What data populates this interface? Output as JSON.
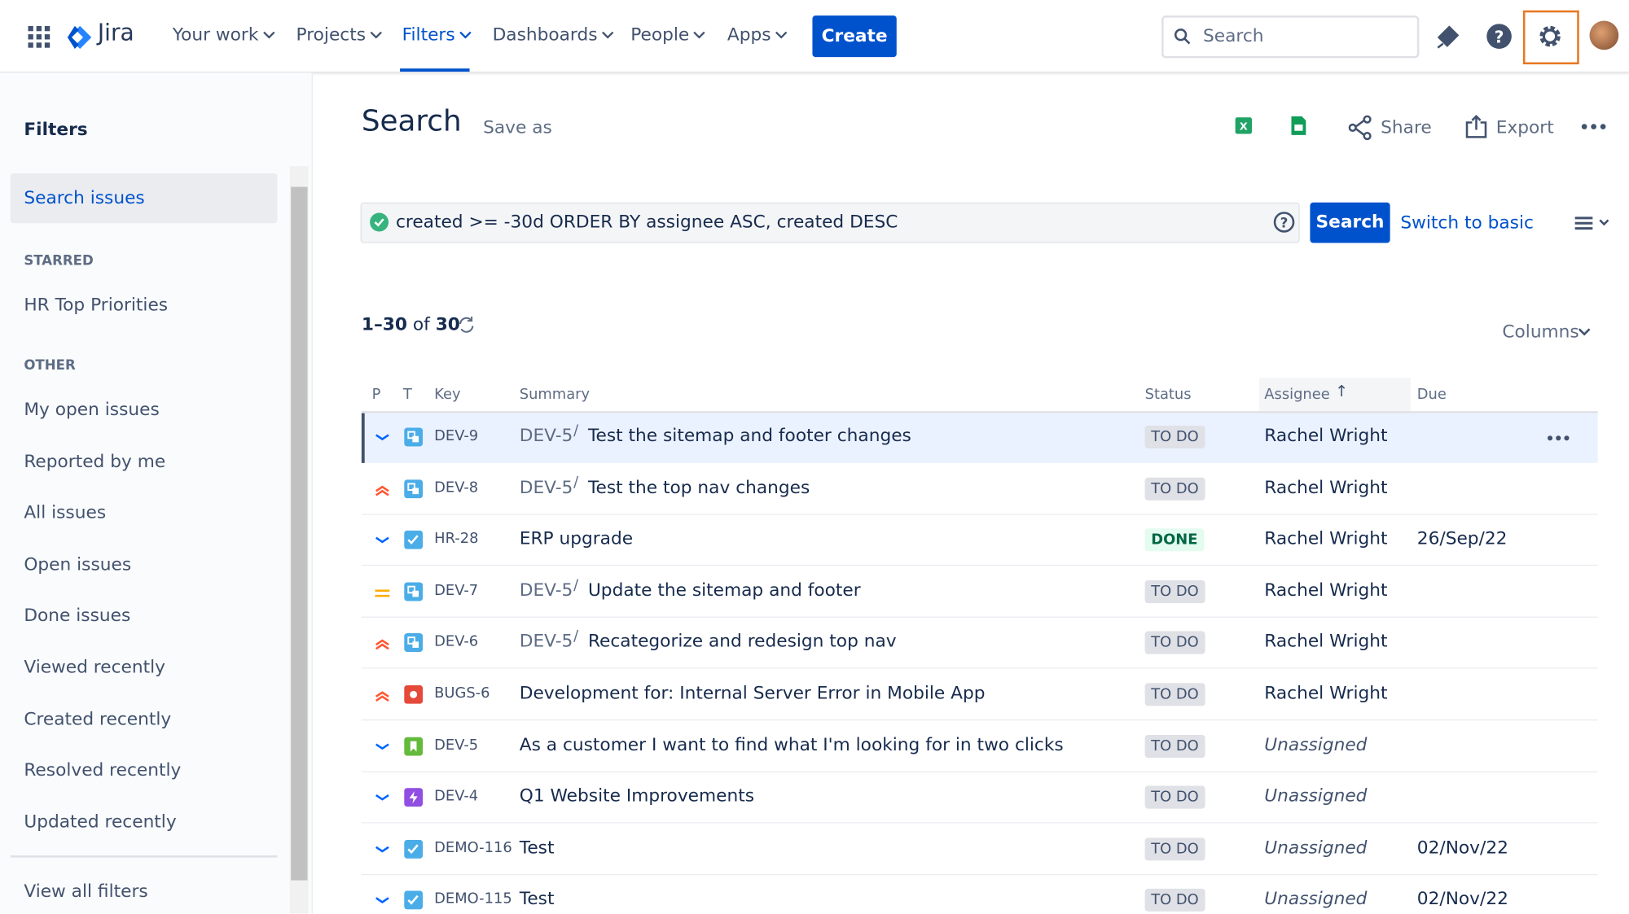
{
  "nav": {
    "product": "Jira",
    "items": [
      "Your work",
      "Projects",
      "Filters",
      "Dashboards",
      "People",
      "Apps"
    ],
    "create": "Create",
    "search_placeholder": "Search"
  },
  "sidebar": {
    "title": "Filters",
    "selected": "Search issues",
    "starred_heading": "STARRED",
    "starred": [
      "HR Top Priorities"
    ],
    "other_heading": "OTHER",
    "other": [
      "My open issues",
      "Reported by me",
      "All issues",
      "Open issues",
      "Done issues",
      "Viewed recently",
      "Created recently",
      "Resolved recently",
      "Updated recently"
    ],
    "footer": "View all filters"
  },
  "header": {
    "title": "Search",
    "save_as": "Save as",
    "share": "Share",
    "export": "Export"
  },
  "query": {
    "jql": "created >= -30d ORDER BY assignee ASC, created DESC",
    "search": "Search",
    "switch": "Switch to basic"
  },
  "results": {
    "range": "1–30",
    "of": "of",
    "total": "30",
    "columns": "Columns"
  },
  "table": {
    "headers": [
      "P",
      "T",
      "Key",
      "Summary",
      "Status",
      "Assignee",
      "Due"
    ],
    "rows": [
      {
        "key": "DEV-9",
        "parent": "DEV-5",
        "summary": "Test the sitemap and footer changes",
        "status": "TO DO",
        "assignee": "Rachel Wright",
        "due": ""
      },
      {
        "key": "DEV-8",
        "parent": "DEV-5",
        "summary": "Test the top nav changes",
        "status": "TO DO",
        "assignee": "Rachel Wright",
        "due": ""
      },
      {
        "key": "HR-28",
        "parent": "",
        "summary": "ERP upgrade",
        "status": "DONE",
        "assignee": "Rachel Wright",
        "due": "26/Sep/22"
      },
      {
        "key": "DEV-7",
        "parent": "DEV-5",
        "summary": "Update the sitemap and footer",
        "status": "TO DO",
        "assignee": "Rachel Wright",
        "due": ""
      },
      {
        "key": "DEV-6",
        "parent": "DEV-5",
        "summary": "Recategorize and redesign top nav",
        "status": "TO DO",
        "assignee": "Rachel Wright",
        "due": ""
      },
      {
        "key": "BUGS-6",
        "parent": "",
        "summary": "Development for: Internal Server Error in Mobile App",
        "status": "TO DO",
        "assignee": "Rachel Wright",
        "due": ""
      },
      {
        "key": "DEV-5",
        "parent": "",
        "summary": "As a customer I want to find what I'm looking for in two clicks",
        "status": "TO DO",
        "assignee": "Unassigned",
        "due": ""
      },
      {
        "key": "DEV-4",
        "parent": "",
        "summary": "Q1 Website Improvements",
        "status": "TO DO",
        "assignee": "Unassigned",
        "due": ""
      },
      {
        "key": "DEMO-116",
        "parent": "",
        "summary": "Test",
        "status": "TO DO",
        "assignee": "Unassigned",
        "due": "02/Nov/22"
      },
      {
        "key": "DEMO-115",
        "parent": "",
        "summary": "Test",
        "status": "TO DO",
        "assignee": "Unassigned",
        "due": "02/Nov/22"
      }
    ]
  }
}
